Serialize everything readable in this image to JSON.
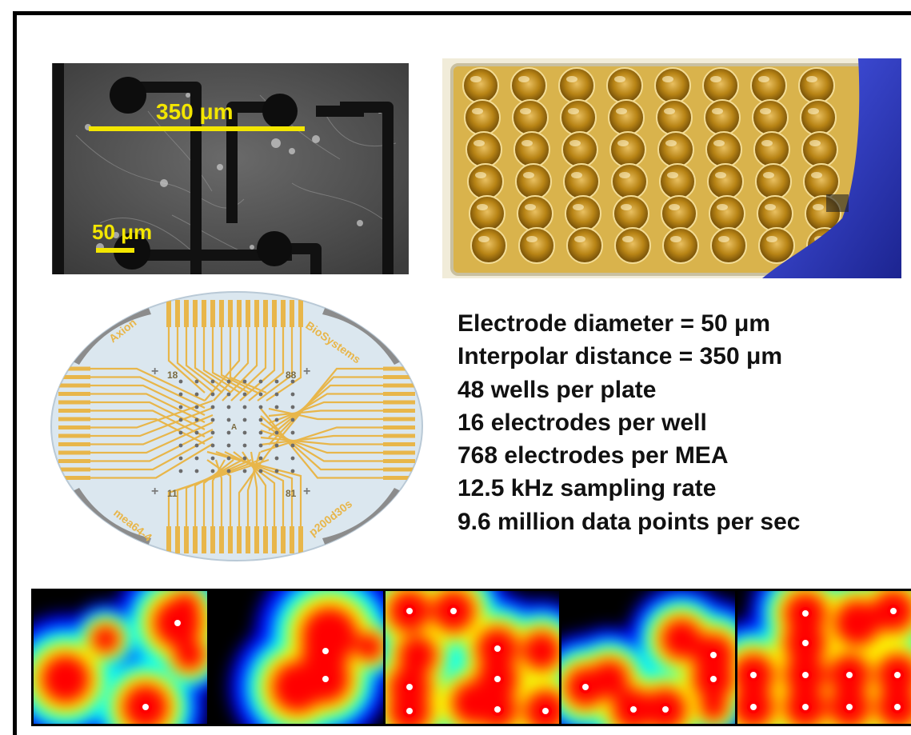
{
  "micrograph": {
    "scale_large": "350 μm",
    "scale_small": "50 μm",
    "yellow": "#f3e600"
  },
  "chip_labels": {
    "brand_left": "Axion",
    "brand_right": "BioSystems",
    "label_18": "18",
    "label_88": "88",
    "label_11": "11",
    "label_81": "81",
    "model_left": "mea64-4",
    "model_right": "p200d30s",
    "center": "A",
    "gold": "#e8b64a"
  },
  "specs": [
    "Electrode diameter = 50 μm",
    "Interpolar distance = 350 μm",
    "48 wells per plate",
    "16 electrodes per well",
    "768 electrodes per MEA",
    "12.5 kHz sampling rate",
    "9.6 million data points per sec"
  ],
  "plate": {
    "rows": 6,
    "cols": 8,
    "glove_color": "#2f3fd0"
  },
  "heatmap_colors": [
    "#000000",
    "#0000ff",
    "#00ffff",
    "#ffff00",
    "#ff0000",
    "#ffffff"
  ]
}
